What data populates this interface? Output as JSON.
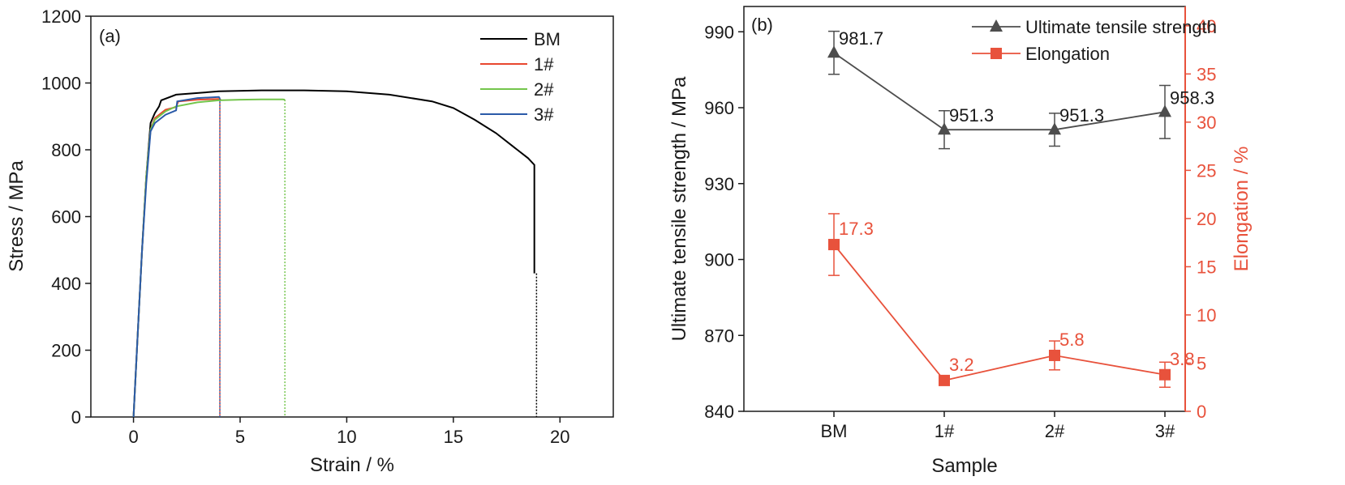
{
  "chart_data": [
    {
      "type": "line",
      "panel_label": "(a)",
      "xlabel": "Strain / %",
      "ylabel": "Stress / MPa",
      "xlim": [
        -2,
        22.5
      ],
      "ylim": [
        0,
        1200
      ],
      "xticks": [
        0,
        5,
        10,
        15,
        20
      ],
      "yticks": [
        0,
        200,
        400,
        600,
        800,
        1000,
        1200
      ],
      "legend_position": "top-right",
      "series": [
        {
          "name": "BM",
          "color": "#000000",
          "x": [
            0,
            0.2,
            0.4,
            0.6,
            0.8,
            1.0,
            1.2,
            1.3,
            2,
            4,
            6,
            8,
            10,
            12,
            14,
            15,
            16,
            17,
            18,
            18.5,
            18.8,
            18.8
          ],
          "y": [
            0,
            250,
            500,
            720,
            880,
            910,
            930,
            948,
            965,
            975,
            978,
            978,
            975,
            965,
            945,
            925,
            890,
            850,
            800,
            775,
            755,
            430
          ],
          "fracture_x": 18.9,
          "fracture_y": 430
        },
        {
          "name": "1#",
          "color": "#e8472f",
          "x": [
            0,
            0.2,
            0.4,
            0.6,
            0.8,
            1.0,
            1.5,
            2.0,
            2.1,
            3.0,
            4.0,
            4.1
          ],
          "y": [
            0,
            250,
            500,
            720,
            860,
            895,
            920,
            928,
            945,
            950,
            952,
            950
          ],
          "fracture_x": 4.05,
          "fracture_y": 0
        },
        {
          "name": "2#",
          "color": "#73c54b",
          "x": [
            0,
            0.2,
            0.4,
            0.6,
            0.8,
            1.0,
            1.5,
            2.0,
            3.0,
            4.0,
            5.0,
            6.0,
            7.0,
            7.1
          ],
          "y": [
            0,
            250,
            500,
            720,
            860,
            890,
            915,
            930,
            942,
            948,
            950,
            951,
            951,
            950
          ],
          "fracture_x": 7.1,
          "fracture_y": 0
        },
        {
          "name": "3#",
          "color": "#2a5aa8",
          "x": [
            0,
            0.2,
            0.4,
            0.6,
            0.8,
            1.0,
            1.5,
            2.0,
            2.05,
            3.0,
            4.0,
            4.05
          ],
          "y": [
            0,
            250,
            500,
            700,
            855,
            880,
            905,
            918,
            945,
            955,
            958,
            955
          ],
          "fracture_x": 4.05,
          "fracture_y": 0
        }
      ]
    },
    {
      "type": "line",
      "panel_label": "(b)",
      "xlabel": "Sample",
      "ylabel": "Ultimate tensile strength / MPa",
      "y2label": "Elongation / %",
      "categories": [
        "BM",
        "1#",
        "2#",
        "3#"
      ],
      "ylim": [
        840,
        1000
      ],
      "yticks": [
        840,
        870,
        900,
        930,
        960,
        990
      ],
      "y2lim": [
        0,
        42
      ],
      "y2ticks": [
        0,
        5,
        10,
        15,
        20,
        25,
        30,
        35,
        40
      ],
      "legend_position": "top-right",
      "series": [
        {
          "name": "Ultimate tensile strength",
          "axis": "left",
          "marker": "triangle",
          "color": "#4d4d4d",
          "values": [
            981.7,
            951.3,
            951.3,
            958.3
          ],
          "error": [
            8.5,
            7.5,
            6.5,
            10.5
          ],
          "labels": [
            "981.7",
            "951.3",
            "951.3",
            "958.3"
          ]
        },
        {
          "name": "Elongation",
          "axis": "right",
          "marker": "square",
          "color": "#e8523c",
          "values": [
            17.3,
            3.2,
            5.8,
            3.8
          ],
          "error": [
            3.2,
            0.4,
            1.5,
            1.3
          ],
          "labels": [
            "17.3",
            "3.2",
            "5.8",
            "3.8"
          ]
        }
      ]
    }
  ]
}
